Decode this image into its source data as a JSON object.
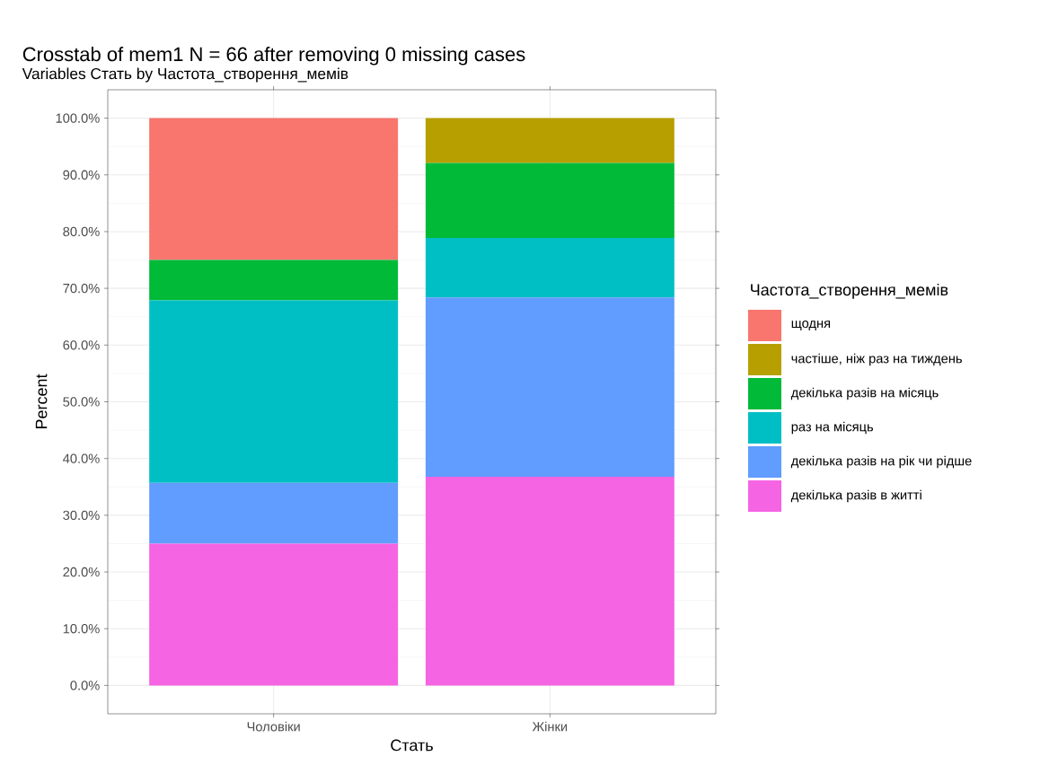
{
  "chart_data": {
    "type": "bar",
    "title": "Crosstab of mem1 N = 66 after removing 0 missing cases",
    "subtitle": "Variables Стать by Частота_створення_мемів",
    "xlabel": "Стать",
    "ylabel": "Percent",
    "legend_title": "Частота_створення_мемів",
    "categories": [
      "Чоловіки",
      "Жінки"
    ],
    "stacked": true,
    "grid": true,
    "legend": "right",
    "ylim": [
      -5,
      105
    ],
    "yticks": [
      {
        "value": 0,
        "label": "0.0%"
      },
      {
        "value": 10,
        "label": "10.0%"
      },
      {
        "value": 20,
        "label": "20.0%"
      },
      {
        "value": 30,
        "label": "30.0%"
      },
      {
        "value": 40,
        "label": "40.0%"
      },
      {
        "value": 50,
        "label": "50.0%"
      },
      {
        "value": 60,
        "label": "60.0%"
      },
      {
        "value": 70,
        "label": "70.0%"
      },
      {
        "value": 80,
        "label": "80.0%"
      },
      {
        "value": 90,
        "label": "90.0%"
      },
      {
        "value": 100,
        "label": "100.0%"
      }
    ],
    "series": [
      {
        "name": "декілька разів в житті",
        "color": "#f564e3",
        "values": [
          25,
          36.8
        ]
      },
      {
        "name": "декілька разів на рік чи рідше",
        "color": "#619cff",
        "values": [
          10.7,
          31.6
        ]
      },
      {
        "name": "раз на місяць",
        "color": "#00bfc4",
        "values": [
          32.2,
          10.5
        ]
      },
      {
        "name": "декілька разів на місяць",
        "color": "#00ba38",
        "values": [
          7.1,
          13.2
        ]
      },
      {
        "name": "частіше, ніж раз на тиждень",
        "color": "#b79f00",
        "values": [
          0,
          7.9
        ]
      },
      {
        "name": "щодня",
        "color": "#f8766d",
        "values": [
          25,
          0
        ]
      }
    ]
  }
}
